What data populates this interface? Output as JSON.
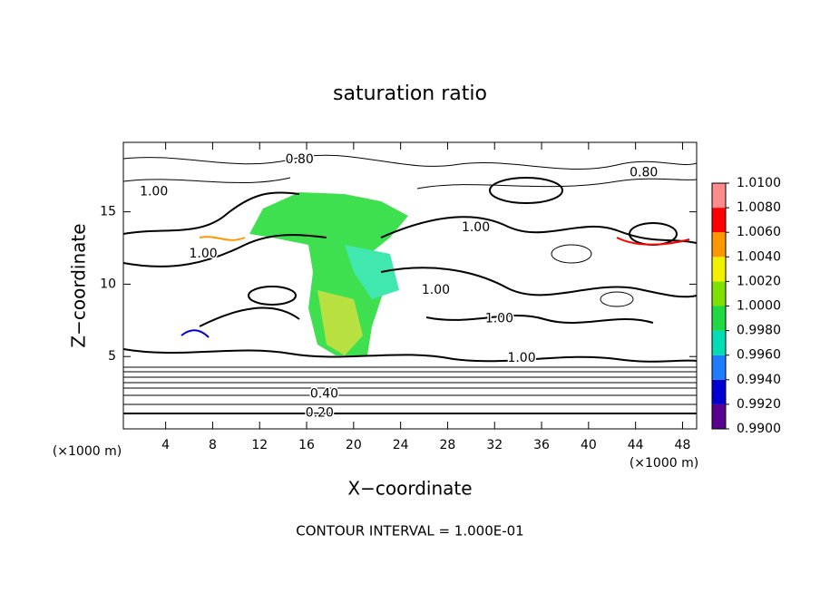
{
  "chart_data": {
    "type": "contour",
    "title": "saturation ratio",
    "x_label": "X−coordinate",
    "y_label": "Z−coordinate",
    "x_unit": "(×1000 m)",
    "y_unit": "(×1000 m)",
    "footnote": "CONTOUR INTERVAL = 1.000E-01",
    "xlim": [
      0.4,
      49.2
    ],
    "ylim": [
      0,
      19.8
    ],
    "xticks": [
      4,
      8,
      12,
      16,
      20,
      24,
      28,
      32,
      36,
      40,
      44,
      48
    ],
    "yticks": [
      5,
      10,
      15
    ],
    "zlim": [
      0.99,
      1.01
    ],
    "colorbar_ticks": [
      {
        "value": 0.99,
        "label": "0.9900"
      },
      {
        "value": 0.992,
        "label": "0.9920"
      },
      {
        "value": 0.994,
        "label": "0.9940"
      },
      {
        "value": 0.996,
        "label": "0.9960"
      },
      {
        "value": 0.998,
        "label": "0.9980"
      },
      {
        "value": 1.0,
        "label": "1.0000"
      },
      {
        "value": 1.002,
        "label": "1.0020"
      },
      {
        "value": 1.004,
        "label": "1.0040"
      },
      {
        "value": 1.006,
        "label": "1.0060"
      },
      {
        "value": 1.008,
        "label": "1.0080"
      },
      {
        "value": 1.01,
        "label": "1.0100"
      }
    ],
    "colorbar_colors": [
      "#5a0090",
      "#0000d0",
      "#1e7cff",
      "#00dcb4",
      "#20d840",
      "#7ee000",
      "#f0f000",
      "#ff9800",
      "#ff0000",
      "#ff8c8c"
    ],
    "annotations": [
      {
        "text": "0.80",
        "x": 15.4,
        "y": 18.6
      },
      {
        "text": "0.80",
        "x": 44.7,
        "y": 17.7
      },
      {
        "text": "1.00",
        "x": 3.0,
        "y": 16.4
      },
      {
        "text": "1.00",
        "x": 30.4,
        "y": 13.9
      },
      {
        "text": "1.00",
        "x": 7.2,
        "y": 12.1
      },
      {
        "text": "1.00",
        "x": 27.0,
        "y": 9.6
      },
      {
        "text": "1.00",
        "x": 32.4,
        "y": 7.6
      },
      {
        "text": "1.00",
        "x": 34.3,
        "y": 4.9
      },
      {
        "text": "0.40",
        "x": 17.5,
        "y": 2.4
      },
      {
        "text": "0.20",
        "x": 17.1,
        "y": 1.1
      }
    ]
  }
}
